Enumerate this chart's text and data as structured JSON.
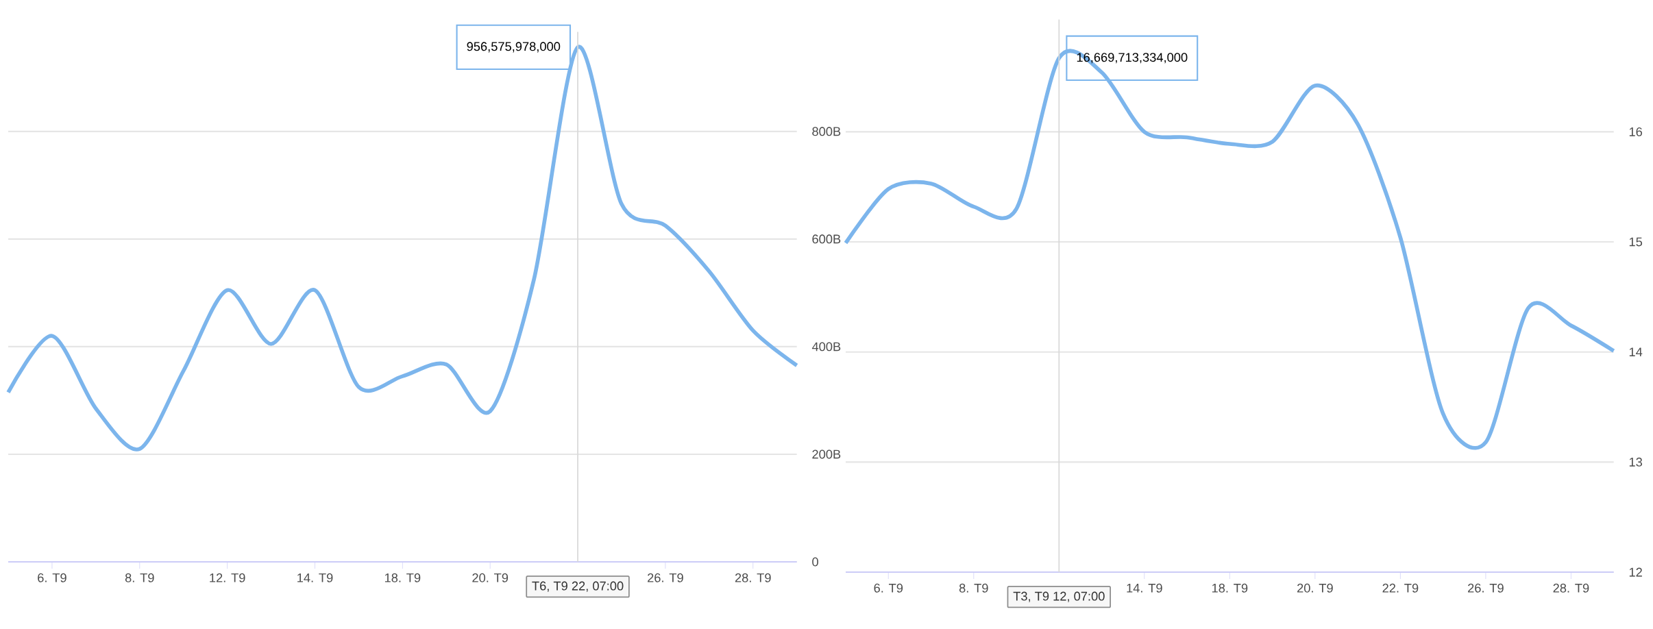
{
  "chart_data": [
    {
      "type": "line",
      "color": "#7cb5ec",
      "grid": "y",
      "categories": [
        null,
        "6. T9",
        null,
        "8. T9",
        null,
        "12. T9",
        null,
        "14. T9",
        null,
        "18. T9",
        null,
        "20. T9",
        null,
        "T6, T9 22, 07:00",
        null,
        "26. T9",
        null,
        "28. T9",
        null
      ],
      "values": [
        315,
        420,
        285,
        210,
        355,
        505,
        405,
        505,
        325,
        345,
        367,
        280,
        525,
        956.575978,
        665,
        625,
        540,
        430,
        365
      ],
      "ylim": [
        0,
        985
      ],
      "yticks": [
        0,
        {
          "value": 200,
          "label": "200B"
        },
        {
          "value": 400,
          "label": "400B"
        },
        {
          "value": 600,
          "label": "600B"
        },
        {
          "value": 800,
          "label": "800B"
        }
      ],
      "annotations": [
        {
          "text": "956,575,978,000",
          "x": "T6, T9 22, 07:00",
          "y": 956.575978
        }
      ]
    },
    {
      "type": "line",
      "color": "#7cb5ec",
      "grid": "y",
      "categories": [
        null,
        "6. T9",
        null,
        "8. T9",
        null,
        "T3, T9 12, 07:00",
        null,
        "14. T9",
        null,
        "18. T9",
        null,
        "20. T9",
        null,
        "22. T9",
        null,
        "26. T9",
        null,
        "28. T9",
        null
      ],
      "values": [
        14.99,
        15.48,
        15.53,
        15.32,
        15.3,
        16.669713334,
        16.54,
        16.0,
        15.95,
        15.89,
        15.91,
        16.42,
        16.07,
        15.04,
        13.44,
        13.18,
        14.4,
        14.24,
        14.01
      ],
      "ylim": [
        12,
        17.02
      ],
      "yticks": [
        12,
        13,
        14,
        15,
        16
      ],
      "annotations": [
        {
          "text": "16,669,713,334,000",
          "x": "T3, T9 12, 07:00",
          "y": 16.669713334
        }
      ]
    }
  ]
}
